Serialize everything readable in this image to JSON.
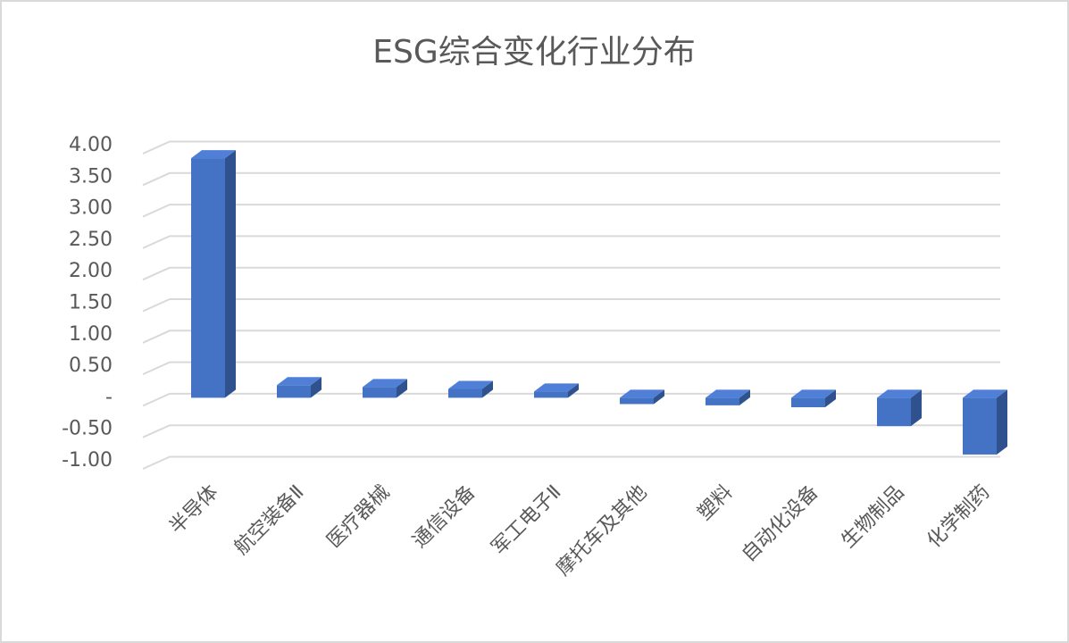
{
  "chart_data": {
    "type": "bar",
    "title": "ESG综合变化行业分布",
    "categories": [
      "半导体",
      "航空装备Ⅱ",
      "医疗器械",
      "通信设备",
      "军工电子Ⅱ",
      "摩托车及其他",
      "塑料",
      "自动化设备",
      "生物制品",
      "化学制药"
    ],
    "values": [
      3.8,
      0.2,
      0.17,
      0.14,
      0.1,
      -0.1,
      -0.12,
      -0.15,
      -0.45,
      -0.9
    ],
    "color": "#4472c4",
    "ylim": [
      -1,
      4
    ],
    "yticks": [
      {
        "value": -1,
        "label": "-1.00"
      },
      {
        "value": -0.5,
        "label": "-0.50"
      },
      {
        "value": 0,
        "label": "-"
      },
      {
        "value": 0.5,
        "label": "0.50"
      },
      {
        "value": 1,
        "label": "1.00"
      },
      {
        "value": 1.5,
        "label": "1.50"
      },
      {
        "value": 2,
        "label": "2.00"
      },
      {
        "value": 2.5,
        "label": "2.50"
      },
      {
        "value": 3,
        "label": "3.00"
      },
      {
        "value": 3.5,
        "label": "3.50"
      },
      {
        "value": 4,
        "label": "4.00"
      }
    ],
    "grid": true
  }
}
